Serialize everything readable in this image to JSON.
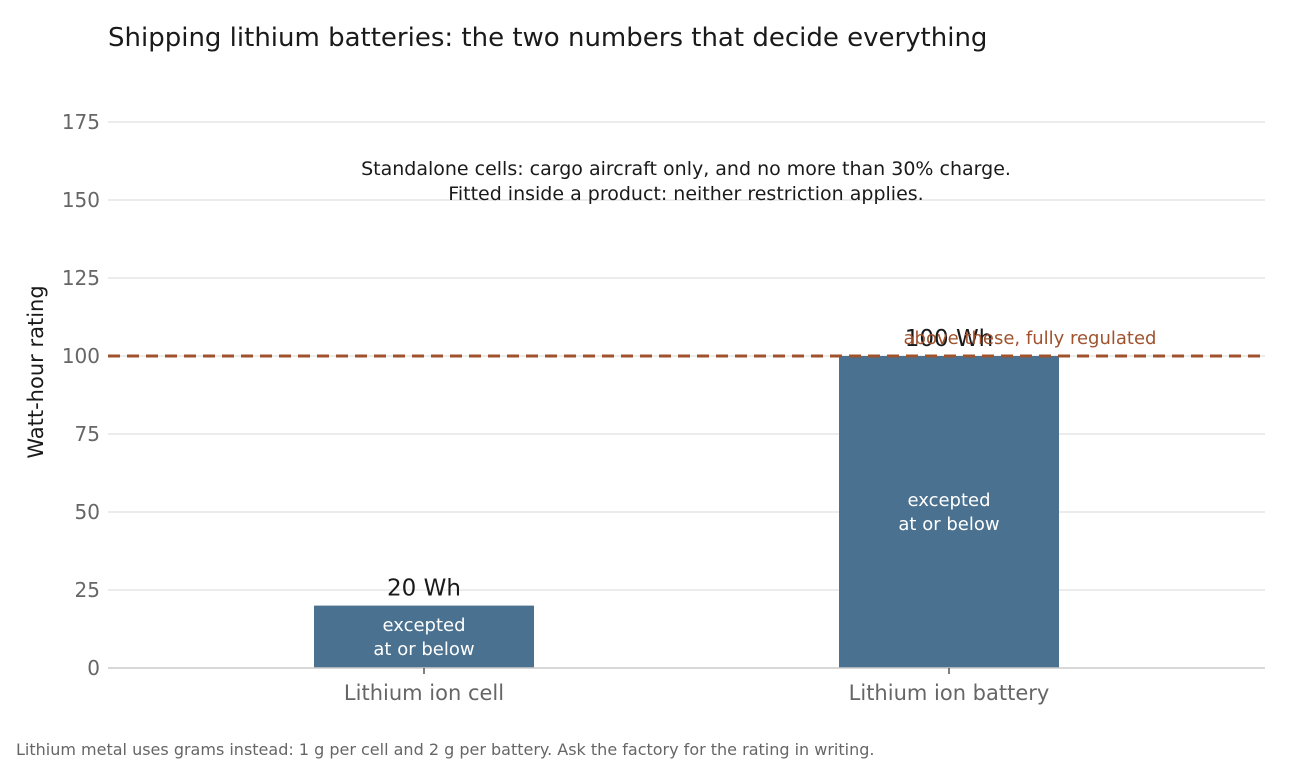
{
  "chart_data": {
    "type": "bar",
    "title": "Shipping lithium batteries: the two numbers that decide everything",
    "xlabel": "",
    "ylabel": "Watt-hour rating",
    "ylim": [
      0,
      175
    ],
    "yticks": [
      0,
      25,
      50,
      75,
      100,
      125,
      150,
      175
    ],
    "grid": true,
    "categories": [
      "Lithium ion cell",
      "Lithium ion battery"
    ],
    "values": [
      20,
      100
    ],
    "value_labels": [
      "20 Wh",
      "100 Wh"
    ],
    "inside_labels": [
      [
        "excepted",
        "at or below"
      ],
      [
        "excepted",
        "at or below"
      ]
    ],
    "bar_color": "#4a7190",
    "threshold": {
      "value": 100,
      "label": "above these, fully regulated",
      "color": "#a0522d",
      "style": "dashed"
    },
    "annotation": [
      "Standalone cells: cargo aircraft only, and no more than 30% charge.",
      "Fitted inside a product: neither restriction applies."
    ],
    "caption": "Lithium metal uses grams instead: 1 g per cell and 2 g per battery. Ask the factory for the rating in writing."
  }
}
